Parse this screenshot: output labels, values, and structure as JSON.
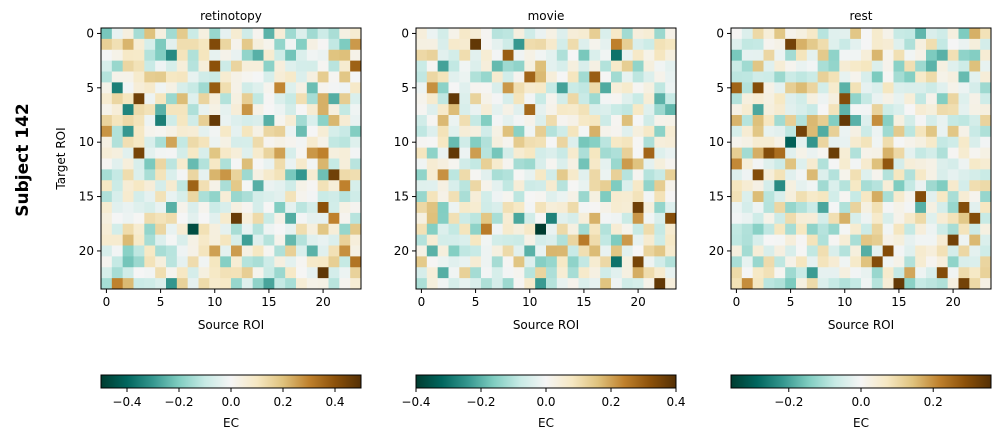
{
  "figure_label": "Subject 142",
  "colormap": {
    "name": "BrBG_r",
    "stops": [
      "#003c30",
      "#01665e",
      "#35978f",
      "#80cdc1",
      "#c7eae5",
      "#f5f5f5",
      "#f6e8c3",
      "#dfc27d",
      "#bf812d",
      "#8c510a",
      "#543005"
    ]
  },
  "chart_data": [
    {
      "type": "heatmap",
      "title": "retinotopy",
      "xlabel": "Source ROI",
      "ylabel": "Target ROI",
      "xticks": [
        0,
        5,
        10,
        15,
        20
      ],
      "yticks": [
        0,
        5,
        10,
        15,
        20
      ],
      "size": 24,
      "colorbar": {
        "label": "EC",
        "range": [
          -0.5,
          0.5
        ],
        "ticks": [
          -0.4,
          -0.2,
          0.0,
          0.2,
          0.4
        ],
        "tick_labels": [
          "−0.4",
          "−0.2",
          "0.0",
          "0.2",
          "0.4"
        ]
      },
      "seed": 142,
      "strong_cells": [
        [
          3,
          6,
          0.45
        ],
        [
          5,
          8,
          -0.35
        ],
        [
          10,
          1,
          0.42
        ],
        [
          10,
          3,
          0.4
        ],
        [
          10,
          5,
          0.38
        ],
        [
          10,
          8,
          0.47
        ],
        [
          3,
          11,
          0.44
        ],
        [
          8,
          18,
          -0.46
        ],
        [
          21,
          13,
          0.45
        ],
        [
          20,
          11,
          0.3
        ],
        [
          20,
          16,
          0.4
        ],
        [
          21,
          17,
          0.3
        ],
        [
          22,
          14,
          0.3
        ],
        [
          20,
          22,
          0.48
        ],
        [
          2,
          9,
          -0.3
        ],
        [
          18,
          13,
          -0.3
        ],
        [
          19,
          20,
          -0.25
        ],
        [
          4,
          0,
          0.2
        ]
      ]
    },
    {
      "type": "heatmap",
      "title": "movie",
      "xlabel": "Source ROI",
      "ylabel": "",
      "xticks": [
        0,
        5,
        10,
        15,
        20
      ],
      "yticks": [
        0,
        5,
        10,
        15,
        20
      ],
      "size": 24,
      "colorbar": {
        "label": "EC",
        "range": [
          -0.4,
          0.4
        ],
        "ticks": [
          -0.4,
          -0.2,
          0.0,
          0.2,
          0.4
        ],
        "tick_labels": [
          "−0.4",
          "−0.2",
          "0.0",
          "0.2",
          "0.4"
        ]
      },
      "seed": 1421,
      "strong_cells": [
        [
          5,
          1,
          0.38
        ],
        [
          3,
          6,
          0.38
        ],
        [
          3,
          11,
          0.38
        ],
        [
          16,
          4,
          0.3
        ],
        [
          11,
          18,
          -0.4
        ],
        [
          20,
          16,
          0.36
        ],
        [
          23,
          17,
          0.33
        ],
        [
          20,
          21,
          0.35
        ],
        [
          22,
          23,
          0.38
        ],
        [
          18,
          2,
          -0.3
        ],
        [
          8,
          2,
          0.3
        ],
        [
          15,
          19,
          0.25
        ],
        [
          6,
          18,
          0.25
        ],
        [
          18,
          21,
          -0.3
        ],
        [
          2,
          13,
          0.22
        ]
      ]
    },
    {
      "type": "heatmap",
      "title": "rest",
      "xlabel": "Source ROI",
      "ylabel": "",
      "xticks": [
        0,
        5,
        10,
        15,
        20
      ],
      "yticks": [
        0,
        5,
        10,
        15,
        20
      ],
      "size": 24,
      "colorbar": {
        "label": "EC",
        "range": [
          -0.36,
          0.36
        ],
        "ticks": [
          -0.2,
          0.0,
          0.2
        ],
        "tick_labels": [
          "−0.2",
          "0.0",
          "0.2"
        ]
      },
      "seed": 1422,
      "strong_cells": [
        [
          5,
          1,
          0.32
        ],
        [
          10,
          6,
          0.3
        ],
        [
          10,
          8,
          0.34
        ],
        [
          6,
          9,
          0.32
        ],
        [
          3,
          11,
          0.3
        ],
        [
          9,
          11,
          0.33
        ],
        [
          2,
          5,
          0.3
        ],
        [
          15,
          23,
          0.34
        ],
        [
          21,
          23,
          0.32
        ],
        [
          21,
          16,
          0.3
        ],
        [
          22,
          17,
          0.3
        ],
        [
          20,
          19,
          0.32
        ],
        [
          14,
          20,
          0.3
        ],
        [
          13,
          21,
          0.3
        ],
        [
          2,
          13,
          0.3
        ],
        [
          0,
          5,
          0.26
        ],
        [
          19,
          22,
          0.3
        ],
        [
          17,
          15,
          0.3
        ]
      ]
    }
  ]
}
